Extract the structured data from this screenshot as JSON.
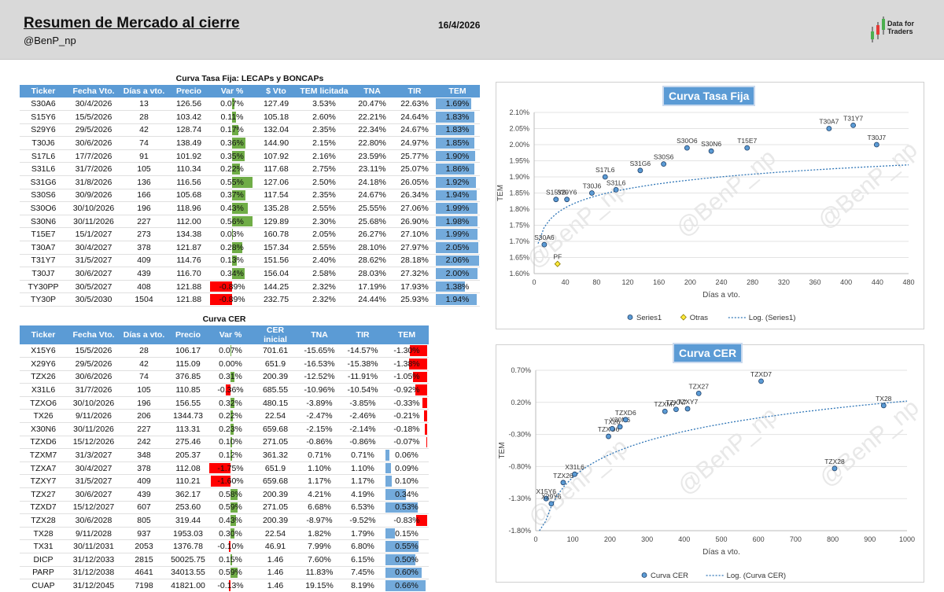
{
  "header": {
    "title": "Resumen de Mercado al cierre",
    "handle": "@BenP_np",
    "date": "16/4/2026",
    "logo_line1": "Data for",
    "logo_line2": "Traders"
  },
  "watermark": "@BenP_np",
  "colors": {
    "header_bg": "#d9d9d9",
    "table_header": "#5b9bd5",
    "positive": "#70ad47",
    "negative": "#ff0000",
    "marker": "#5b9bd5",
    "trend": "#2e75b6"
  },
  "fija": {
    "title": "Curva Tasa Fija: LECAPs y BONCAPs",
    "columns": [
      "Ticker",
      "Fecha Vto.",
      "Días a vto.",
      "Precio",
      "Var %",
      "$ Vto",
      "TEM licitada",
      "TNA",
      "TIR",
      "TEM"
    ],
    "rows": [
      {
        "ticker": "S30A6",
        "fecha": "30/4/2026",
        "dias": "13",
        "precio": "126.56",
        "var": "0.07%",
        "var_num": 0.07,
        "vto": "127.49",
        "lic": "3.53%",
        "tna": "20.47%",
        "tir": "22.63%",
        "tem": "1.69%",
        "tem_num": 1.69
      },
      {
        "ticker": "S15Y6",
        "fecha": "15/5/2026",
        "dias": "28",
        "precio": "103.42",
        "var": "0.11%",
        "var_num": 0.11,
        "vto": "105.18",
        "lic": "2.60%",
        "tna": "22.21%",
        "tir": "24.64%",
        "tem": "1.83%",
        "tem_num": 1.83
      },
      {
        "ticker": "S29Y6",
        "fecha": "29/5/2026",
        "dias": "42",
        "precio": "128.74",
        "var": "0.17%",
        "var_num": 0.17,
        "vto": "132.04",
        "lic": "2.35%",
        "tna": "22.34%",
        "tir": "24.67%",
        "tem": "1.83%",
        "tem_num": 1.83
      },
      {
        "ticker": "T30J6",
        "fecha": "30/6/2026",
        "dias": "74",
        "precio": "138.49",
        "var": "0.36%",
        "var_num": 0.36,
        "vto": "144.90",
        "lic": "2.15%",
        "tna": "22.80%",
        "tir": "24.97%",
        "tem": "1.85%",
        "tem_num": 1.85
      },
      {
        "ticker": "S17L6",
        "fecha": "17/7/2026",
        "dias": "91",
        "precio": "101.92",
        "var": "0.35%",
        "var_num": 0.35,
        "vto": "107.92",
        "lic": "2.16%",
        "tna": "23.59%",
        "tir": "25.77%",
        "tem": "1.90%",
        "tem_num": 1.9
      },
      {
        "ticker": "S31L6",
        "fecha": "31/7/2026",
        "dias": "105",
        "precio": "110.34",
        "var": "0.22%",
        "var_num": 0.22,
        "vto": "117.68",
        "lic": "2.75%",
        "tna": "23.11%",
        "tir": "25.07%",
        "tem": "1.86%",
        "tem_num": 1.86
      },
      {
        "ticker": "S31G6",
        "fecha": "31/8/2026",
        "dias": "136",
        "precio": "116.56",
        "var": "0.55%",
        "var_num": 0.55,
        "vto": "127.06",
        "lic": "2.50%",
        "tna": "24.18%",
        "tir": "26.05%",
        "tem": "1.92%",
        "tem_num": 1.92
      },
      {
        "ticker": "S30S6",
        "fecha": "30/9/2026",
        "dias": "166",
        "precio": "105.68",
        "var": "0.37%",
        "var_num": 0.37,
        "vto": "117.54",
        "lic": "2.35%",
        "tna": "24.67%",
        "tir": "26.34%",
        "tem": "1.94%",
        "tem_num": 1.94
      },
      {
        "ticker": "S30O6",
        "fecha": "30/10/2026",
        "dias": "196",
        "precio": "118.96",
        "var": "0.43%",
        "var_num": 0.43,
        "vto": "135.28",
        "lic": "2.55%",
        "tna": "25.55%",
        "tir": "27.06%",
        "tem": "1.99%",
        "tem_num": 1.99
      },
      {
        "ticker": "S30N6",
        "fecha": "30/11/2026",
        "dias": "227",
        "precio": "112.00",
        "var": "0.56%",
        "var_num": 0.56,
        "vto": "129.89",
        "lic": "2.30%",
        "tna": "25.68%",
        "tir": "26.90%",
        "tem": "1.98%",
        "tem_num": 1.98
      },
      {
        "ticker": "T15E7",
        "fecha": "15/1/2027",
        "dias": "273",
        "precio": "134.38",
        "var": "0.03%",
        "var_num": 0.03,
        "vto": "160.78",
        "lic": "2.05%",
        "tna": "26.27%",
        "tir": "27.10%",
        "tem": "1.99%",
        "tem_num": 1.99
      },
      {
        "ticker": "T30A7",
        "fecha": "30/4/2027",
        "dias": "378",
        "precio": "121.87",
        "var": "0.28%",
        "var_num": 0.28,
        "vto": "157.34",
        "lic": "2.55%",
        "tna": "28.10%",
        "tir": "27.97%",
        "tem": "2.05%",
        "tem_num": 2.05
      },
      {
        "ticker": "T31Y7",
        "fecha": "31/5/2027",
        "dias": "409",
        "precio": "114.76",
        "var": "0.13%",
        "var_num": 0.13,
        "vto": "151.56",
        "lic": "2.40%",
        "tna": "28.62%",
        "tir": "28.18%",
        "tem": "2.06%",
        "tem_num": 2.06
      },
      {
        "ticker": "T30J7",
        "fecha": "30/6/2027",
        "dias": "439",
        "precio": "116.70",
        "var": "0.34%",
        "var_num": 0.34,
        "vto": "156.04",
        "lic": "2.58%",
        "tna": "28.03%",
        "tir": "27.32%",
        "tem": "2.00%",
        "tem_num": 2.0
      },
      {
        "ticker": "TY30PP",
        "fecha": "30/5/2027",
        "dias": "408",
        "precio": "121.88",
        "var": "-0.89%",
        "var_num": -0.89,
        "vto": "144.25",
        "lic": "2.32%",
        "tna": "17.19%",
        "tir": "17.93%",
        "tem": "1.38%",
        "tem_num": 1.38
      },
      {
        "ticker": "TY30P",
        "fecha": "30/5/2030",
        "dias": "1504",
        "precio": "121.88",
        "var": "-0.89%",
        "var_num": -0.89,
        "vto": "232.75",
        "lic": "2.32%",
        "tna": "24.44%",
        "tir": "25.93%",
        "tem": "1.94%",
        "tem_num": 1.94
      }
    ]
  },
  "cer": {
    "title": "Curva CER",
    "columns": [
      "Ticker",
      "Fecha Vto.",
      "Días a vto.",
      "Precio",
      "Var %",
      "CER inicial",
      "TNA",
      "TIR",
      "TEM"
    ],
    "rows": [
      {
        "ticker": "X15Y6",
        "fecha": "15/5/2026",
        "dias": "28",
        "precio": "106.17",
        "var": "0.07%",
        "var_num": 0.07,
        "cer": "701.61",
        "tna": "-15.65%",
        "tir": "-14.57%",
        "tem": "-1.30%",
        "tem_num": -1.3
      },
      {
        "ticker": "X29Y6",
        "fecha": "29/5/2026",
        "dias": "42",
        "precio": "115.09",
        "var": "0.00%",
        "var_num": 0.0,
        "cer": "651.9",
        "tna": "-16.53%",
        "tir": "-15.38%",
        "tem": "-1.38%",
        "tem_num": -1.38
      },
      {
        "ticker": "TZX26",
        "fecha": "30/6/2026",
        "dias": "74",
        "precio": "376.85",
        "var": "0.31%",
        "var_num": 0.31,
        "cer": "200.39",
        "tna": "-12.52%",
        "tir": "-11.91%",
        "tem": "-1.05%",
        "tem_num": -1.05
      },
      {
        "ticker": "X31L6",
        "fecha": "31/7/2026",
        "dias": "105",
        "precio": "110.85",
        "var": "-0.36%",
        "var_num": -0.36,
        "cer": "685.55",
        "tna": "-10.96%",
        "tir": "-10.54%",
        "tem": "-0.92%",
        "tem_num": -0.92
      },
      {
        "ticker": "TZXO6",
        "fecha": "30/10/2026",
        "dias": "196",
        "precio": "156.55",
        "var": "0.32%",
        "var_num": 0.32,
        "cer": "480.15",
        "tna": "-3.89%",
        "tir": "-3.85%",
        "tem": "-0.33%",
        "tem_num": -0.33
      },
      {
        "ticker": "TX26",
        "fecha": "9/11/2026",
        "dias": "206",
        "precio": "1344.73",
        "var": "0.22%",
        "var_num": 0.22,
        "cer": "22.54",
        "tna": "-2.47%",
        "tir": "-2.46%",
        "tem": "-0.21%",
        "tem_num": -0.21
      },
      {
        "ticker": "X30N6",
        "fecha": "30/11/2026",
        "dias": "227",
        "precio": "113.31",
        "var": "0.23%",
        "var_num": 0.23,
        "cer": "659.68",
        "tna": "-2.15%",
        "tir": "-2.14%",
        "tem": "-0.18%",
        "tem_num": -0.18
      },
      {
        "ticker": "TZXD6",
        "fecha": "15/12/2026",
        "dias": "242",
        "precio": "275.46",
        "var": "0.10%",
        "var_num": 0.1,
        "cer": "271.05",
        "tna": "-0.86%",
        "tir": "-0.86%",
        "tem": "-0.07%",
        "tem_num": -0.07
      },
      {
        "ticker": "TZXM7",
        "fecha": "31/3/2027",
        "dias": "348",
        "precio": "205.37",
        "var": "0.12%",
        "var_num": 0.12,
        "cer": "361.32",
        "tna": "0.71%",
        "tir": "0.71%",
        "tem": "0.06%",
        "tem_num": 0.06
      },
      {
        "ticker": "TZXA7",
        "fecha": "30/4/2027",
        "dias": "378",
        "precio": "112.08",
        "var": "-1.75%",
        "var_num": -1.75,
        "cer": "651.9",
        "tna": "1.10%",
        "tir": "1.10%",
        "tem": "0.09%",
        "tem_num": 0.09
      },
      {
        "ticker": "TZXY7",
        "fecha": "31/5/2027",
        "dias": "409",
        "precio": "110.21",
        "var": "-1.60%",
        "var_num": -1.6,
        "cer": "659.68",
        "tna": "1.17%",
        "tir": "1.17%",
        "tem": "0.10%",
        "tem_num": 0.1
      },
      {
        "ticker": "TZX27",
        "fecha": "30/6/2027",
        "dias": "439",
        "precio": "362.17",
        "var": "0.58%",
        "var_num": 0.58,
        "cer": "200.39",
        "tna": "4.21%",
        "tir": "4.19%",
        "tem": "0.34%",
        "tem_num": 0.34
      },
      {
        "ticker": "TZXD7",
        "fecha": "15/12/2027",
        "dias": "607",
        "precio": "253.60",
        "var": "0.59%",
        "var_num": 0.59,
        "cer": "271.05",
        "tna": "6.68%",
        "tir": "6.53%",
        "tem": "0.53%",
        "tem_num": 0.53
      },
      {
        "ticker": "TZX28",
        "fecha": "30/6/2028",
        "dias": "805",
        "precio": "319.44",
        "var": "0.43%",
        "var_num": 0.43,
        "cer": "200.39",
        "tna": "-8.97%",
        "tir": "-9.52%",
        "tem": "-0.83%",
        "tem_num": -0.83
      },
      {
        "ticker": "TX28",
        "fecha": "9/11/2028",
        "dias": "937",
        "precio": "1953.03",
        "var": "0.30%",
        "var_num": 0.3,
        "cer": "22.54",
        "tna": "1.82%",
        "tir": "1.79%",
        "tem": "0.15%",
        "tem_num": 0.15
      },
      {
        "ticker": "TX31",
        "fecha": "30/11/2031",
        "dias": "2053",
        "precio": "1376.78",
        "var": "-0.10%",
        "var_num": -0.1,
        "cer": "46.91",
        "tna": "7.99%",
        "tir": "6.80%",
        "tem": "0.55%",
        "tem_num": 0.55
      },
      {
        "ticker": "DICP",
        "fecha": "31/12/2033",
        "dias": "2815",
        "precio": "50025.75",
        "var": "0.15%",
        "var_num": 0.15,
        "cer": "1.46",
        "tna": "7.60%",
        "tir": "6.15%",
        "tem": "0.50%",
        "tem_num": 0.5
      },
      {
        "ticker": "PARP",
        "fecha": "31/12/2038",
        "dias": "4641",
        "precio": "34013.55",
        "var": "0.59%",
        "var_num": 0.59,
        "cer": "1.46",
        "tna": "11.83%",
        "tir": "7.45%",
        "tem": "0.60%",
        "tem_num": 0.6
      },
      {
        "ticker": "CUAP",
        "fecha": "31/12/2045",
        "dias": "7198",
        "precio": "41821.00",
        "var": "-0.13%",
        "var_num": -0.13,
        "cer": "1.46",
        "tna": "19.15%",
        "tir": "8.19%",
        "tem": "0.66%",
        "tem_num": 0.66
      }
    ]
  },
  "chart_data": [
    {
      "type": "scatter",
      "title": "Curva Tasa Fija",
      "xlabel": "Días a vto.",
      "ylabel": "TEM",
      "xlim": [
        0,
        480
      ],
      "ylim": [
        1.6,
        2.1
      ],
      "xticks": [
        "0",
        "40",
        "80",
        "120",
        "160",
        "200",
        "240",
        "280",
        "320",
        "360",
        "400",
        "440",
        "480"
      ],
      "yticks": [
        "1.60%",
        "1.65%",
        "1.70%",
        "1.75%",
        "1.80%",
        "1.85%",
        "1.90%",
        "1.95%",
        "2.00%",
        "2.05%",
        "2.10%"
      ],
      "legend": [
        "Series1",
        "Otras",
        "Log. (Series1)"
      ],
      "series": [
        {
          "name": "Series1",
          "points": [
            {
              "label": "S30A6",
              "x": 13,
              "y": 1.69
            },
            {
              "label": "S15Y6",
              "x": 28,
              "y": 1.83
            },
            {
              "label": "S29Y6",
              "x": 42,
              "y": 1.83
            },
            {
              "label": "T30J6",
              "x": 74,
              "y": 1.85
            },
            {
              "label": "S17L6",
              "x": 91,
              "y": 1.9
            },
            {
              "label": "S31L6",
              "x": 105,
              "y": 1.86
            },
            {
              "label": "S31G6",
              "x": 136,
              "y": 1.92
            },
            {
              "label": "S30S6",
              "x": 166,
              "y": 1.94
            },
            {
              "label": "S30O6",
              "x": 196,
              "y": 1.99
            },
            {
              "label": "S30N6",
              "x": 227,
              "y": 1.98
            },
            {
              "label": "T15E7",
              "x": 273,
              "y": 1.99
            },
            {
              "label": "T30A7",
              "x": 378,
              "y": 2.05
            },
            {
              "label": "T31Y7",
              "x": 409,
              "y": 2.06
            },
            {
              "label": "T30J7",
              "x": 439,
              "y": 2.0
            }
          ]
        },
        {
          "name": "Otras",
          "points": [
            {
              "label": "PF",
              "x": 30,
              "y": 1.63
            }
          ]
        }
      ],
      "trend": {
        "type": "log",
        "a": 1.607,
        "b": 0.0535,
        "xstart": 5,
        "xend": 480
      }
    },
    {
      "type": "scatter",
      "title": "Curva CER",
      "xlabel": "Días a vto.",
      "ylabel": "TEM",
      "xlim": [
        0,
        1000
      ],
      "ylim": [
        -1.8,
        0.7
      ],
      "xticks": [
        "0",
        "100",
        "200",
        "300",
        "400",
        "500",
        "600",
        "700",
        "800",
        "900",
        "1000"
      ],
      "yticks": [
        "-1.80%",
        "-1.30%",
        "-0.80%",
        "-0.30%",
        "0.20%",
        "0.70%"
      ],
      "legend": [
        "Curva CER",
        "Log. (Curva CER)"
      ],
      "series": [
        {
          "name": "Curva CER",
          "points": [
            {
              "label": "X15Y6",
              "x": 28,
              "y": -1.3
            },
            {
              "label": "X29Y6",
              "x": 42,
              "y": -1.38
            },
            {
              "label": "TZX26",
              "x": 74,
              "y": -1.05
            },
            {
              "label": "X31L6",
              "x": 105,
              "y": -0.92
            },
            {
              "label": "TZXO6",
              "x": 196,
              "y": -0.33
            },
            {
              "label": "TX26",
              "x": 206,
              "y": -0.21
            },
            {
              "label": "X30N6",
              "x": 227,
              "y": -0.18
            },
            {
              "label": "TZXD6",
              "x": 242,
              "y": -0.07
            },
            {
              "label": "TZXM7",
              "x": 348,
              "y": 0.06
            },
            {
              "label": "TZXA7",
              "x": 378,
              "y": 0.09
            },
            {
              "label": "TZXY7",
              "x": 409,
              "y": 0.1
            },
            {
              "label": "TZX27",
              "x": 439,
              "y": 0.34
            },
            {
              "label": "TZXD7",
              "x": 607,
              "y": 0.53
            },
            {
              "label": "TZX28",
              "x": 805,
              "y": -0.83
            },
            {
              "label": "TX28",
              "x": 937,
              "y": 0.15
            }
          ]
        }
      ],
      "trend": {
        "type": "log",
        "a": -3.35,
        "b": 0.517,
        "xstart": 10,
        "xend": 1000
      }
    }
  ]
}
